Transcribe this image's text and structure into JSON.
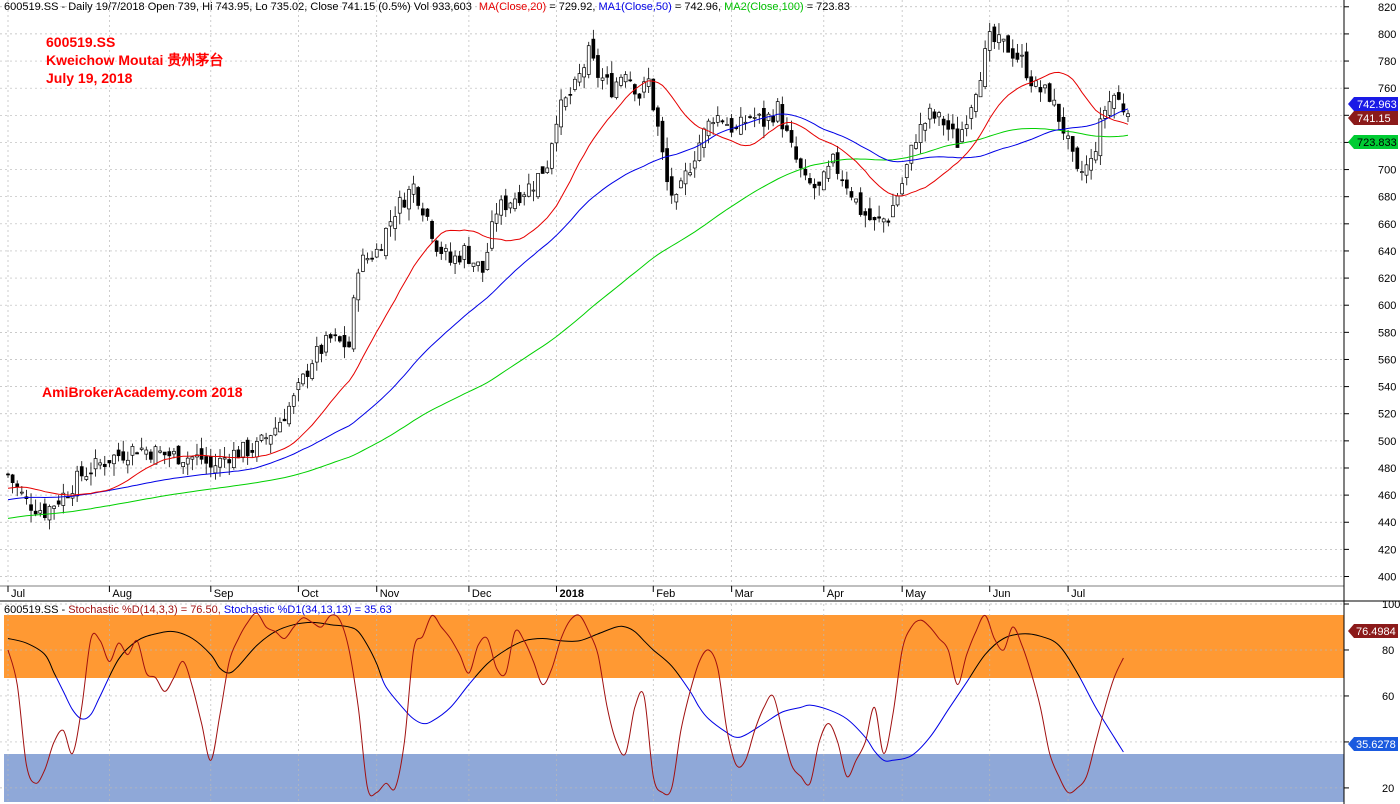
{
  "header": {
    "price_info": "600519.SS - Daily 19/7/2018 Open 739, Hi 743.95, Lo 735.02, Close 741.15 (0.5%) Vol 933,603",
    "ma20_label": "MA(Close,20)",
    "ma20_value": " = 729.92, ",
    "ma50_label": "MA1(Close,50)",
    "ma50_value": " = 742.96, ",
    "ma100_label": "MA2(Close,100)",
    "ma100_value": " = 723.83"
  },
  "annotations": {
    "ticker": "600519.SS",
    "name": "Kweichow Moutai 贵州茅台",
    "date": "July 19, 2018",
    "watermark": "AmiBrokerAcademy.com  2018"
  },
  "stoch_header": {
    "prefix": "600519.SS - ",
    "k_label": "Stochastic %D(14,3,3) = 76.50, ",
    "d_label": "Stochastic %D1(34,13,13) = 35.63"
  },
  "badges": {
    "ma50": "742.963",
    "close": "741.15",
    "ma100": "723.833",
    "stoch_k": "76.4984",
    "stoch_d": "35.6278"
  },
  "colors": {
    "ma20": "#e60000",
    "ma50": "#0000e6",
    "ma100": "#00d000",
    "stoch_k": "#a01010",
    "stoch_d_upper": "#000000",
    "stoch_d_lower": "#0000e6",
    "overbought_band": "#ff9933",
    "oversold_band": "#8fa8d8",
    "badge_close": "#8b1a1a",
    "badge_ma50": "#1a1ae6",
    "badge_ma100": "#00cc33",
    "badge_stoch_k": "#8b1a1a",
    "badge_stoch_d": "#1a5adf"
  },
  "chart_data": [
    {
      "type": "candlestick",
      "title": "600519.SS Kweichow Moutai 贵州茅台 Daily",
      "y_ticks": [
        400,
        420,
        440,
        460,
        480,
        500,
        520,
        540,
        560,
        580,
        600,
        620,
        640,
        660,
        680,
        700,
        720,
        740,
        760,
        780,
        800,
        820
      ],
      "ylim": [
        393,
        825
      ],
      "x_labels": [
        "Jul",
        "Aug",
        "Sep",
        "Oct",
        "Nov",
        "Dec",
        "2018",
        "Feb",
        "Mar",
        "Apr",
        "May",
        "Jun",
        "Jul"
      ],
      "x_label_pos": [
        0,
        22,
        44,
        63,
        80,
        100,
        119,
        140,
        157,
        177,
        194,
        213,
        230
      ],
      "n_days": 244,
      "price_anchors": [
        [
          0,
          475
        ],
        [
          4,
          455
        ],
        [
          8,
          448
        ],
        [
          12,
          460
        ],
        [
          16,
          475
        ],
        [
          22,
          487
        ],
        [
          28,
          495
        ],
        [
          34,
          490
        ],
        [
          42,
          487
        ],
        [
          44,
          480
        ],
        [
          48,
          490
        ],
        [
          54,
          495
        ],
        [
          58,
          510
        ],
        [
          62,
          530
        ],
        [
          66,
          560
        ],
        [
          70,
          575
        ],
        [
          72,
          572
        ],
        [
          74,
          570
        ],
        [
          76,
          630
        ],
        [
          80,
          640
        ],
        [
          84,
          670
        ],
        [
          88,
          688
        ],
        [
          91,
          665
        ],
        [
          93,
          645
        ],
        [
          96,
          632
        ],
        [
          99,
          640
        ],
        [
          103,
          625
        ],
        [
          106,
          670
        ],
        [
          110,
          680
        ],
        [
          114,
          690
        ],
        [
          117,
          705
        ],
        [
          119,
          740
        ],
        [
          123,
          760
        ],
        [
          126,
          785
        ],
        [
          128,
          770
        ],
        [
          131,
          760
        ],
        [
          134,
          775
        ],
        [
          137,
          755
        ],
        [
          139,
          765
        ],
        [
          141,
          730
        ],
        [
          143,
          690
        ],
        [
          145,
          675
        ],
        [
          147,
          695
        ],
        [
          150,
          720
        ],
        [
          153,
          740
        ],
        [
          155,
          738
        ],
        [
          158,
          728
        ],
        [
          161,
          740
        ],
        [
          164,
          735
        ],
        [
          167,
          745
        ],
        [
          170,
          715
        ],
        [
          173,
          690
        ],
        [
          176,
          685
        ],
        [
          179,
          705
        ],
        [
          182,
          690
        ],
        [
          185,
          670
        ],
        [
          188,
          660
        ],
        [
          191,
          665
        ],
        [
          194,
          690
        ],
        [
          197,
          725
        ],
        [
          200,
          740
        ],
        [
          203,
          735
        ],
        [
          206,
          720
        ],
        [
          209,
          750
        ],
        [
          213,
          795
        ],
        [
          217,
          790
        ],
        [
          220,
          780
        ],
        [
          223,
          760
        ],
        [
          226,
          755
        ],
        [
          229,
          730
        ],
        [
          232,
          695
        ],
        [
          235,
          705
        ],
        [
          238,
          745
        ],
        [
          240,
          755
        ],
        [
          243,
          741
        ]
      ],
      "ma20_last": 729.92,
      "ma50_last": 742.96,
      "ma100_last": 723.83,
      "series": [
        {
          "name": "MA(Close,20)",
          "color": "#e60000"
        },
        {
          "name": "MA1(Close,50)",
          "color": "#0000e6"
        },
        {
          "name": "MA2(Close,100)",
          "color": "#00d000"
        }
      ]
    },
    {
      "type": "line",
      "title": "Stochastic",
      "y_ticks": [
        20,
        40,
        60,
        80,
        100
      ],
      "ylim": [
        13,
        100
      ],
      "overbought_band": [
        67,
        97
      ],
      "oversold_band": [
        13,
        30
      ],
      "series": [
        {
          "name": "Stochastic %D(14,3,3)",
          "color": "#a01010",
          "points": [
            [
              0,
              80
            ],
            [
              2,
              65
            ],
            [
              4,
              30
            ],
            [
              6,
              22
            ],
            [
              8,
              28
            ],
            [
              10,
              40
            ],
            [
              12,
              45
            ],
            [
              14,
              35
            ],
            [
              16,
              55
            ],
            [
              18,
              85
            ],
            [
              20,
              84
            ],
            [
              22,
              75
            ],
            [
              24,
              83
            ],
            [
              26,
              78
            ],
            [
              28,
              84
            ],
            [
              30,
              70
            ],
            [
              32,
              68
            ],
            [
              34,
              62
            ],
            [
              36,
              68
            ],
            [
              38,
              75
            ],
            [
              40,
              64
            ],
            [
              42,
              48
            ],
            [
              44,
              32
            ],
            [
              46,
              52
            ],
            [
              48,
              75
            ],
            [
              50,
              85
            ],
            [
              52,
              92
            ],
            [
              54,
              96
            ],
            [
              56,
              90
            ],
            [
              58,
              88
            ],
            [
              60,
              85
            ],
            [
              62,
              90
            ],
            [
              64,
              94
            ],
            [
              66,
              92
            ],
            [
              68,
              90
            ],
            [
              70,
              95
            ],
            [
              72,
              93
            ],
            [
              74,
              80
            ],
            [
              76,
              55
            ],
            [
              78,
              20
            ],
            [
              80,
              18
            ],
            [
              82,
              22
            ],
            [
              84,
              20
            ],
            [
              86,
              40
            ],
            [
              88,
              80
            ],
            [
              90,
              86
            ],
            [
              92,
              95
            ],
            [
              94,
              90
            ],
            [
              96,
              85
            ],
            [
              98,
              78
            ],
            [
              100,
              70
            ],
            [
              102,
              82
            ],
            [
              104,
              85
            ],
            [
              106,
              72
            ],
            [
              108,
              70
            ],
            [
              110,
              88
            ],
            [
              112,
              84
            ],
            [
              114,
              75
            ],
            [
              116,
              65
            ],
            [
              118,
              72
            ],
            [
              120,
              85
            ],
            [
              122,
              93
            ],
            [
              124,
              95
            ],
            [
              126,
              88
            ],
            [
              128,
              78
            ],
            [
              130,
              55
            ],
            [
              132,
              40
            ],
            [
              134,
              35
            ],
            [
              136,
              55
            ],
            [
              138,
              60
            ],
            [
              140,
              25
            ],
            [
              142,
              18
            ],
            [
              144,
              20
            ],
            [
              146,
              45
            ],
            [
              148,
              62
            ],
            [
              150,
              75
            ],
            [
              152,
              80
            ],
            [
              154,
              72
            ],
            [
              156,
              45
            ],
            [
              158,
              30
            ],
            [
              160,
              32
            ],
            [
              162,
              45
            ],
            [
              164,
              55
            ],
            [
              166,
              60
            ],
            [
              168,
              45
            ],
            [
              170,
              30
            ],
            [
              172,
              25
            ],
            [
              174,
              22
            ],
            [
              176,
              40
            ],
            [
              178,
              48
            ],
            [
              180,
              40
            ],
            [
              182,
              25
            ],
            [
              184,
              32
            ],
            [
              186,
              40
            ],
            [
              188,
              55
            ],
            [
              190,
              35
            ],
            [
              192,
              52
            ],
            [
              194,
              80
            ],
            [
              196,
              90
            ],
            [
              198,
              93
            ],
            [
              200,
              90
            ],
            [
              202,
              85
            ],
            [
              204,
              80
            ],
            [
              206,
              65
            ],
            [
              208,
              78
            ],
            [
              210,
              88
            ],
            [
              212,
              95
            ],
            [
              214,
              85
            ],
            [
              216,
              80
            ],
            [
              218,
              90
            ],
            [
              220,
              82
            ],
            [
              222,
              70
            ],
            [
              224,
              55
            ],
            [
              226,
              35
            ],
            [
              228,
              25
            ],
            [
              230,
              18
            ],
            [
              232,
              20
            ],
            [
              234,
              25
            ],
            [
              236,
              40
            ],
            [
              238,
              55
            ],
            [
              240,
              68
            ],
            [
              242,
              76.5
            ]
          ]
        },
        {
          "name": "Stochastic %D1(34,13,13)",
          "color": "#000000",
          "points": [
            [
              0,
              85
            ],
            [
              4,
              83
            ],
            [
              8,
              78
            ],
            [
              10,
              70
            ],
            [
              12,
              62
            ],
            [
              14,
              54
            ],
            [
              16,
              50
            ],
            [
              18,
              52
            ],
            [
              20,
              60
            ],
            [
              24,
              76
            ],
            [
              28,
              84
            ],
            [
              32,
              87
            ],
            [
              36,
              88
            ],
            [
              40,
              85
            ],
            [
              44,
              78
            ],
            [
              46,
              72
            ],
            [
              48,
              70
            ],
            [
              50,
              73
            ],
            [
              54,
              82
            ],
            [
              58,
              88
            ],
            [
              62,
              91
            ],
            [
              66,
              92
            ],
            [
              70,
              91
            ],
            [
              74,
              90
            ],
            [
              76,
              88
            ],
            [
              78,
              82
            ],
            [
              80,
              74
            ],
            [
              82,
              64
            ],
            [
              86,
              54
            ],
            [
              88,
              50
            ],
            [
              90,
              48
            ],
            [
              92,
              49
            ],
            [
              96,
              55
            ],
            [
              100,
              65
            ],
            [
              104,
              74
            ],
            [
              108,
              80
            ],
            [
              112,
              84
            ],
            [
              116,
              85
            ],
            [
              120,
              84
            ],
            [
              124,
              84
            ],
            [
              128,
              87
            ],
            [
              132,
              90
            ],
            [
              134,
              90
            ],
            [
              136,
              88
            ],
            [
              138,
              84
            ],
            [
              140,
              80
            ],
            [
              144,
              73
            ],
            [
              148,
              62
            ],
            [
              150,
              55
            ],
            [
              152,
              50
            ],
            [
              156,
              44
            ],
            [
              158,
              42
            ],
            [
              160,
              43
            ],
            [
              164,
              48
            ],
            [
              168,
              53
            ],
            [
              172,
              55
            ],
            [
              174,
              56
            ],
            [
              178,
              54
            ],
            [
              182,
              50
            ],
            [
              186,
              42
            ],
            [
              188,
              36
            ],
            [
              190,
              32
            ],
            [
              192,
              32
            ],
            [
              196,
              34
            ],
            [
              200,
              42
            ],
            [
              204,
              54
            ],
            [
              208,
              66
            ],
            [
              212,
              78
            ],
            [
              216,
              85
            ],
            [
              220,
              87
            ],
            [
              224,
              86
            ],
            [
              228,
              82
            ],
            [
              232,
              70
            ],
            [
              236,
              55
            ],
            [
              240,
              42
            ],
            [
              242,
              35.63
            ]
          ],
          "upper_color": "#000000",
          "lower_color": "#0000e6"
        }
      ]
    }
  ]
}
